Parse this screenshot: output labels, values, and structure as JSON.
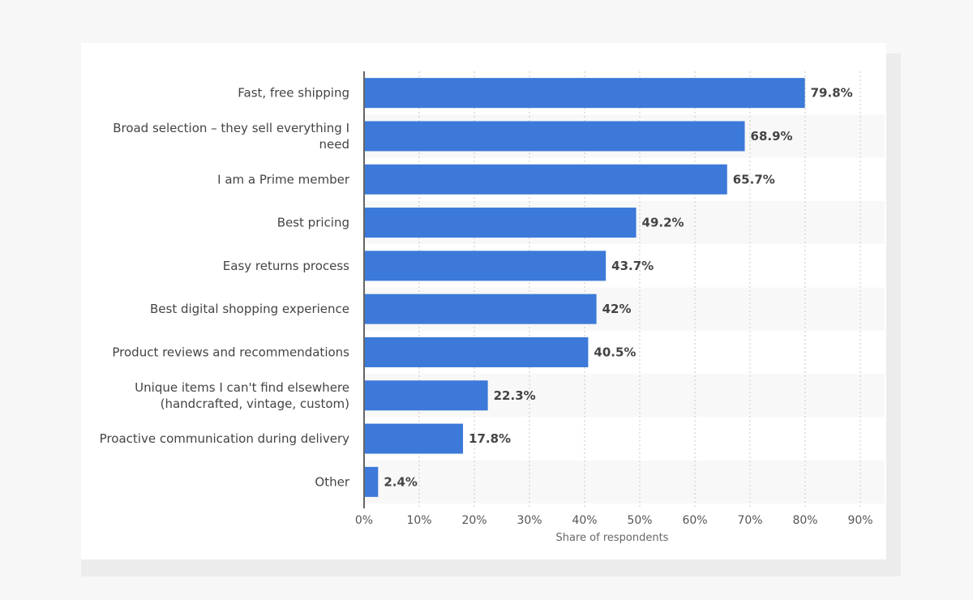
{
  "chart_data": {
    "type": "bar",
    "orientation": "horizontal",
    "categories": [
      [
        "Fast, free shipping"
      ],
      [
        "Broad selection – they sell everything I",
        "need"
      ],
      [
        "I am a Prime member"
      ],
      [
        "Best pricing"
      ],
      [
        "Easy returns process"
      ],
      [
        "Best digital shopping experience"
      ],
      [
        "Product reviews and recommendations"
      ],
      [
        "Unique items I can't find elsewhere",
        "(handcrafted, vintage, custom)"
      ],
      [
        "Proactive communication during delivery"
      ],
      [
        "Other"
      ]
    ],
    "values": [
      79.8,
      68.9,
      65.7,
      49.2,
      43.7,
      42,
      40.5,
      22.3,
      17.8,
      2.4
    ],
    "value_labels": [
      "79.8%",
      "68.9%",
      "65.7%",
      "49.2%",
      "43.7%",
      "42%",
      "40.5%",
      "22.3%",
      "17.8%",
      "2.4%"
    ],
    "xlim": [
      0,
      90
    ],
    "ticks": [
      0,
      10,
      20,
      30,
      40,
      50,
      60,
      70,
      80,
      90
    ],
    "tick_labels": [
      "0%",
      "10%",
      "20%",
      "30%",
      "40%",
      "50%",
      "60%",
      "70%",
      "80%",
      "90%"
    ],
    "xlabel": "Share of respondents",
    "ylabel": "",
    "grid": true,
    "bar_color": "#3c79d8",
    "stripe_color": "#f8f8f8"
  }
}
